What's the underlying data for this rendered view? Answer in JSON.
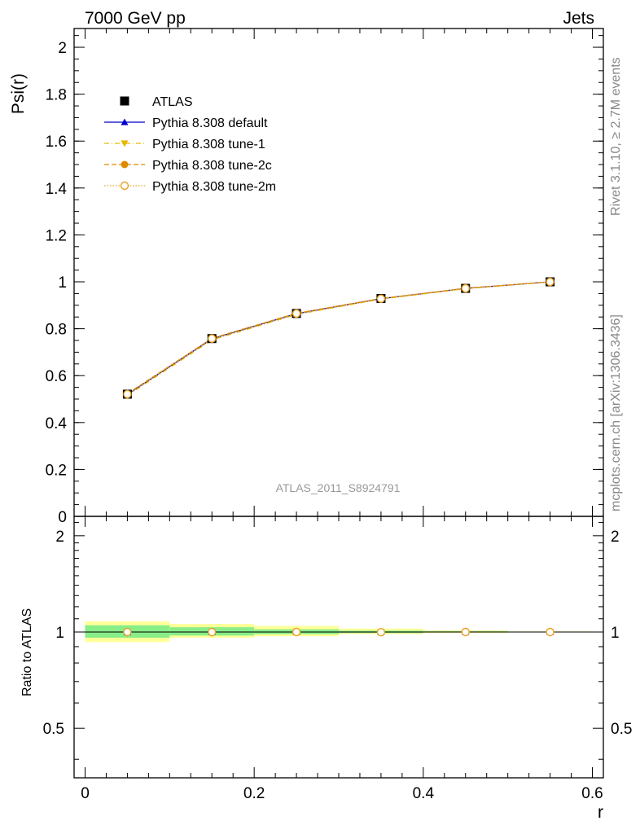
{
  "header": {
    "left_label": "7000 GeV pp",
    "right_label": "Jets"
  },
  "side_text": {
    "rivet": "Rivet 3.1.10, ≥ 2.7M events",
    "source": "mcplots.cern.ch [arXiv:1306.3436]"
  },
  "chart_data": [
    {
      "type": "line",
      "ylabel": "Psi(r)",
      "watermark": "ATLAS_2011_S8924791",
      "ylim": [
        0,
        2.08
      ],
      "xlim": [
        -0.013,
        0.613
      ],
      "y_ticks": [
        "0",
        "0.2",
        "0.4",
        "0.6",
        "0.8",
        "1",
        "1.2",
        "1.4",
        "1.6",
        "1.8",
        "2"
      ],
      "legend_position": "top-left",
      "x": [
        0.05,
        0.15,
        0.25,
        0.35,
        0.45,
        0.55
      ],
      "series": [
        {
          "name": "ATLAS",
          "color": "#000000",
          "marker": "square",
          "values": [
            0.521,
            0.758,
            0.865,
            0.929,
            0.972,
            1.0
          ]
        },
        {
          "name": "Pythia 8.308 default",
          "color": "#0000cc",
          "marker": "triangle-up",
          "line": "solid",
          "values": [
            0.52,
            0.757,
            0.864,
            0.928,
            0.972,
            1.0
          ]
        },
        {
          "name": "Pythia 8.308 tune-1",
          "color": "#e8b800",
          "marker": "triangle-down",
          "line": "dashdot",
          "values": [
            0.515,
            0.752,
            0.861,
            0.926,
            0.971,
            1.0
          ]
        },
        {
          "name": "Pythia 8.308 tune-2c",
          "color": "#e08a00",
          "marker": "circle",
          "line": "dashed",
          "values": [
            0.523,
            0.759,
            0.866,
            0.929,
            0.972,
            1.0
          ]
        },
        {
          "name": "Pythia 8.308 tune-2m",
          "color": "#e8a020",
          "marker": "open-circle",
          "line": "dotted",
          "values": [
            0.521,
            0.758,
            0.865,
            0.928,
            0.972,
            1.0
          ]
        }
      ]
    },
    {
      "type": "line",
      "ylabel": "Ratio to ATLAS",
      "xlabel": "r",
      "ylim": [
        0.35,
        2.3
      ],
      "y_scale": "log",
      "x_ticks": [
        "0",
        "0.2",
        "0.4",
        "0.6"
      ],
      "y_ticks": [
        "0.5",
        "1",
        "2"
      ],
      "reference": 1.0,
      "bands": [
        {
          "x": [
            0.0,
            0.1
          ],
          "outer": [
            0.93,
            1.08
          ],
          "inner": [
            0.96,
            1.05
          ]
        },
        {
          "x": [
            0.1,
            0.2
          ],
          "outer": [
            0.96,
            1.06
          ],
          "inner": [
            0.975,
            1.035
          ]
        },
        {
          "x": [
            0.2,
            0.3
          ],
          "outer": [
            0.97,
            1.045
          ],
          "inner": [
            0.985,
            1.02
          ]
        },
        {
          "x": [
            0.3,
            0.4
          ],
          "outer": [
            0.985,
            1.025
          ],
          "inner": [
            0.993,
            1.01
          ]
        },
        {
          "x": [
            0.4,
            0.5
          ],
          "outer": [
            0.993,
            1.012
          ],
          "inner": [
            0.997,
            1.005
          ]
        },
        {
          "x": [
            0.5,
            0.6
          ],
          "outer": [
            0.997,
            1.004
          ],
          "inner": [
            0.999,
            1.002
          ]
        }
      ],
      "band_colors": {
        "outer": "#ffff99",
        "inner": "#88ee88"
      },
      "x": [
        0.05,
        0.15,
        0.25,
        0.35,
        0.45,
        0.55
      ],
      "series": [
        {
          "name": "Pythia 8.308 default",
          "color": "#0000cc",
          "marker": "triangle-up",
          "values": [
            0.998,
            0.999,
            0.999,
            0.999,
            1.0,
            1.0
          ]
        },
        {
          "name": "Pythia 8.308 tune-1",
          "color": "#e8b800",
          "marker": "triangle-down",
          "values": [
            0.989,
            0.992,
            0.995,
            0.997,
            0.999,
            1.0
          ]
        },
        {
          "name": "Pythia 8.308 tune-2c",
          "color": "#e08a00",
          "marker": "circle",
          "values": [
            1.004,
            1.001,
            1.001,
            1.0,
            1.0,
            1.0
          ]
        },
        {
          "name": "Pythia 8.308 tune-2m",
          "color": "#e8a020",
          "marker": "open-circle",
          "values": [
            1.0,
            1.0,
            1.0,
            0.999,
            1.0,
            1.0
          ]
        }
      ]
    }
  ]
}
